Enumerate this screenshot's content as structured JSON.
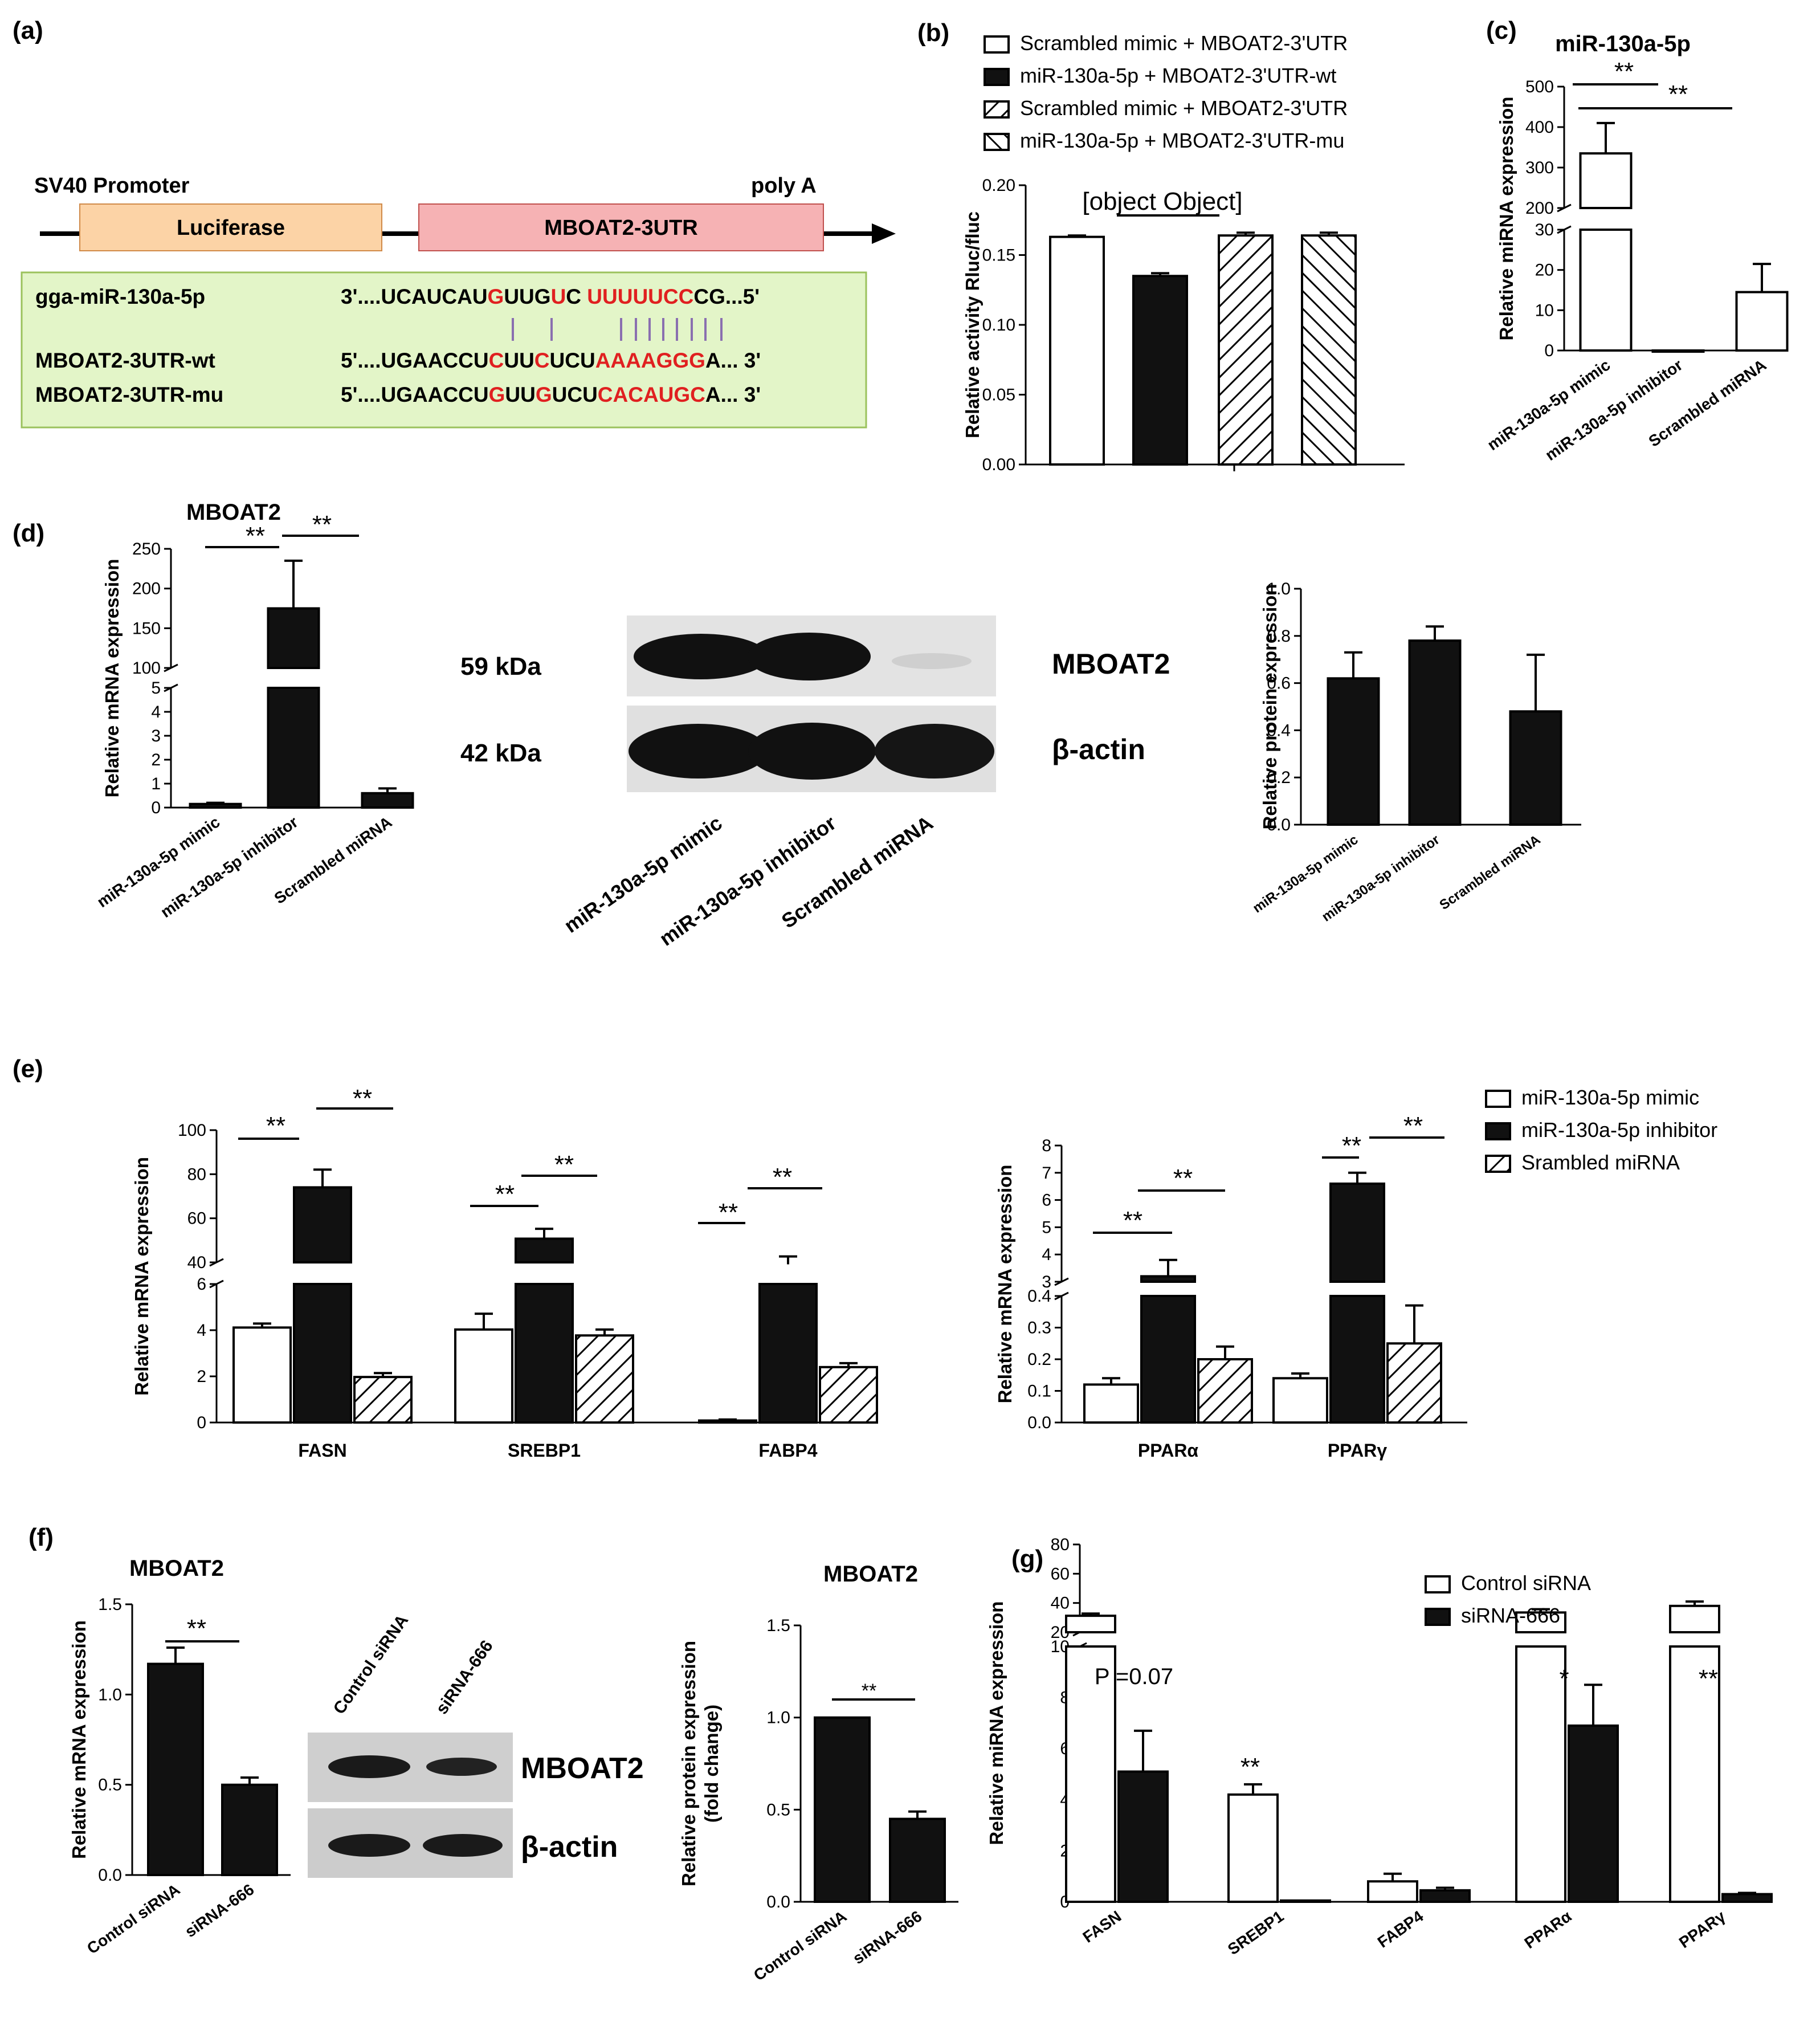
{
  "panel_labels": {
    "a": "(a)",
    "b": "(b)",
    "c": "(c)",
    "d": "(d)",
    "e": "(e)",
    "f": "(f)",
    "g": "(g)"
  },
  "panel_a": {
    "promoter": "SV40 Promoter",
    "polya": "poly A",
    "luciferase": "Luciferase",
    "utr": "MBOAT2-3UTR",
    "rows": [
      {
        "label": "gga-miR-130a-5p",
        "segments": [
          [
            "3'....UCAUCAU",
            false
          ],
          [
            "G",
            true
          ],
          [
            "UUG",
            false
          ],
          [
            "U",
            true
          ],
          [
            "C    ",
            false
          ],
          [
            "UUUUUCC",
            true
          ],
          [
            "CG...5'",
            false
          ]
        ]
      },
      {
        "label": "MBOAT2-3UTR-wt",
        "segments": [
          [
            "5'....UGAACCU",
            false
          ],
          [
            "C",
            true
          ],
          [
            "UU",
            false
          ],
          [
            "C",
            true
          ],
          [
            "UCU",
            false
          ],
          [
            "AAAAGGG",
            true
          ],
          [
            "A...  3'",
            false
          ]
        ]
      },
      {
        "label": "MBOAT2-3UTR-mu",
        "segments": [
          [
            "5'....UGAACCU",
            false
          ],
          [
            "G",
            true
          ],
          [
            "UU",
            false
          ],
          [
            "G",
            true
          ],
          [
            "UCU",
            false
          ],
          [
            "CACAUGC",
            true
          ],
          [
            "A...  3'",
            false
          ]
        ]
      }
    ],
    "colors": {
      "luciferase": "#fcd3a6",
      "utr": "#f6b2b4",
      "seq_box": "#e3f5c8",
      "match": "#8a6fb0",
      "highlight": "#e02020"
    }
  },
  "chart_data": [
    {
      "id": "b",
      "type": "bar",
      "title": "",
      "ylabel": "Relative activity Rluc/fluc",
      "ylim": [
        0,
        0.2
      ],
      "yticks": [
        "0.00",
        "0.05",
        "0.10",
        "0.15",
        "0.20"
      ],
      "legend": [
        "Scrambled mimic + MBOAT2-3'UTR",
        "miR-130a-5p + MBOAT2-3'UTR-wt",
        "Scrambled mimic + MBOAT2-3'UTR",
        "miR-130a-5p + MBOAT2-3'UTR-mu"
      ],
      "bars": [
        {
          "value": 0.163,
          "err": 0.001,
          "fill": "white"
        },
        {
          "value": 0.135,
          "err": 0.002,
          "fill": "black"
        },
        {
          "value": 0.164,
          "err": 0.002,
          "fill": "hatch"
        },
        {
          "value": 0.164,
          "err": 0.002,
          "fill": "hatch2"
        }
      ],
      "sig": [
        {
          "from": 0,
          "to": 1,
          "text": "**"
        }
      ]
    },
    {
      "id": "c",
      "type": "bar",
      "title": "miR-130a-5p",
      "ylabel": "Relative miRNA expression",
      "yticks_top": [
        "200",
        "300",
        "400",
        "500"
      ],
      "yticks_bottom": [
        "0",
        "10",
        "20",
        "30"
      ],
      "categories": [
        "miR-130a-5p mimic",
        "miR-130a-5p inhibitor",
        "Scrambled miRNA"
      ],
      "values": [
        335,
        0,
        14.5
      ],
      "errors": [
        75,
        0,
        7
      ],
      "sig": [
        "**",
        "**"
      ]
    },
    {
      "id": "d_mrna",
      "type": "bar",
      "title": "MBOAT2",
      "ylabel": "Relative mRNA expression",
      "yticks_top": [
        "100",
        "150",
        "200",
        "250"
      ],
      "yticks_bottom": [
        "0",
        "1",
        "2",
        "3",
        "4",
        "5"
      ],
      "categories": [
        "miR-130a-5p mimic",
        "miR-130a-5p inhibitor",
        "Scrambled miRNA"
      ],
      "values": [
        0.15,
        175,
        0.6
      ],
      "errors": [
        0.05,
        60,
        0.2
      ],
      "sig": [
        "**",
        "**"
      ]
    },
    {
      "id": "d_protein",
      "type": "bar",
      "title": "",
      "ylabel": "Relative protein expression",
      "ylim": [
        0,
        1.0
      ],
      "yticks": [
        "0.0",
        "0.2",
        "0.4",
        "0.6",
        "0.8",
        "1.0"
      ],
      "categories": [
        "miR-130a-5p mimic",
        "miR-130a-5p inhibitor",
        "Scrambled miRNA"
      ],
      "values": [
        0.62,
        0.78,
        0.48
      ],
      "errors": [
        0.11,
        0.06,
        0.24
      ]
    },
    {
      "id": "e_left",
      "type": "bar",
      "title": "",
      "ylabel": "Relative mRNA expression",
      "yticks_top": [
        "40",
        "60",
        "80",
        "100"
      ],
      "yticks_bottom": [
        "0",
        "2",
        "4",
        "6"
      ],
      "categories": [
        "FASN",
        "SREBP1",
        "FABP4"
      ],
      "series": [
        {
          "name": "miR-130a-5p mimic",
          "values": [
            4.8,
            4.7,
            0.1
          ],
          "errors": [
            0.2,
            0.8,
            0.05
          ]
        },
        {
          "name": "miR-130a-5p inhibitor",
          "values": [
            71,
            45,
            32
          ],
          "errors": [
            9,
            5,
            4
          ]
        },
        {
          "name": "Srambled miRNA",
          "values": [
            2.3,
            4.4,
            2.8
          ],
          "errors": [
            0.2,
            0.3,
            0.2
          ]
        }
      ],
      "sig": [
        "**",
        "**",
        "**",
        "**",
        "**",
        "**"
      ]
    },
    {
      "id": "e_right",
      "type": "bar",
      "title": "",
      "ylabel": "Relative mRNA expression",
      "yticks_top": [
        "3",
        "4",
        "5",
        "6",
        "7",
        "8"
      ],
      "yticks_bottom": [
        "0.0",
        "0.1",
        "0.2",
        "0.3",
        "0.4"
      ],
      "categories": [
        "PPARα",
        "PPARγ"
      ],
      "series": [
        {
          "name": "miR-130a-5p mimic",
          "values": [
            0.12,
            0.14
          ],
          "errors": [
            0.02,
            0.015
          ]
        },
        {
          "name": "miR-130a-5p inhibitor",
          "values": [
            3.2,
            6.6
          ],
          "errors": [
            0.6,
            0.4
          ]
        },
        {
          "name": "Srambled miRNA",
          "values": [
            0.2,
            0.25
          ],
          "errors": [
            0.04,
            0.12
          ]
        }
      ],
      "sig": [
        "**",
        "**",
        "**",
        "**"
      ]
    },
    {
      "id": "f_mrna",
      "type": "bar",
      "title": "MBOAT2",
      "ylabel": "Relative mRNA expression",
      "ylim": [
        0,
        1.5
      ],
      "yticks": [
        "0.0",
        "0.5",
        "1.0",
        "1.5"
      ],
      "categories": [
        "Control siRNA",
        "siRNA-666"
      ],
      "values": [
        1.17,
        0.5
      ],
      "errors": [
        0.09,
        0.04
      ],
      "sig": [
        "**"
      ]
    },
    {
      "id": "f_protein",
      "type": "bar",
      "title": "MBOAT2",
      "ylabel": "Relative protein expression (fold change)",
      "ylim": [
        0,
        1.5
      ],
      "yticks": [
        "0.0",
        "0.5",
        "1.0",
        "1.5"
      ],
      "categories": [
        "Control siRNA",
        "siRNA-666"
      ],
      "values": [
        1.0,
        0.45
      ],
      "errors": [
        0,
        0.04
      ],
      "sig": [
        "**"
      ]
    },
    {
      "id": "g",
      "type": "bar",
      "title": "",
      "ylabel": "Relative miRNA expression",
      "yticks_top": [
        "20",
        "40",
        "60",
        "80"
      ],
      "yticks_bottom": [
        "0",
        "2",
        "4",
        "6",
        "8",
        "10"
      ],
      "categories": [
        "FASN",
        "SREBP1",
        "FABP4",
        "PPARα",
        "PPARγ"
      ],
      "series": [
        {
          "name": "Control siRNA",
          "values": [
            15,
            4.2,
            0.8,
            18,
            24
          ],
          "errors": [
            2,
            0.4,
            0.3,
            3,
            4
          ]
        },
        {
          "name": "siRNA-666",
          "values": [
            5.1,
            0.05,
            0.45,
            6.9,
            0.3
          ],
          "errors": [
            1.6,
            0,
            0.1,
            1.6,
            0.05
          ]
        }
      ],
      "annotations": [
        "P =0.07",
        "**",
        "*",
        "**"
      ]
    }
  ],
  "blots": {
    "d": {
      "size1": "59 kDa",
      "size2": "42 kDa",
      "label1": "MBOAT2",
      "label2": "β-actin",
      "lanes": [
        "miR-130a-5p mimic",
        "miR-130a-5p inhibitor",
        "Scrambled miRNA"
      ]
    },
    "f": {
      "label1": "MBOAT2",
      "label2": "β-actin",
      "lanes": [
        "Control siRNA",
        "siRNA-666"
      ]
    }
  }
}
